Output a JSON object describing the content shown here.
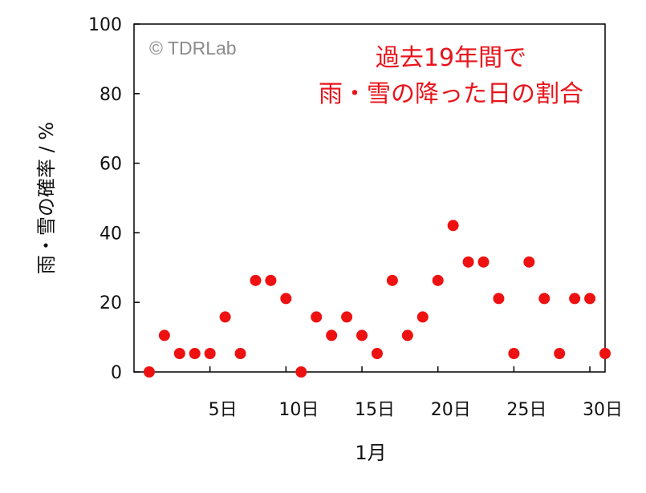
{
  "chart_data": {
    "type": "scatter",
    "title_lines": [
      "過去19年間で",
      "雨・雪の降った日の割合"
    ],
    "watermark": "© TDRLab",
    "xlabel": "1月",
    "ylabel": "雨・雪の確率 / %",
    "x_tick_labels": [
      "5日",
      "10日",
      "15日",
      "20日",
      "25日",
      "30日"
    ],
    "y_tick_labels": [
      "0",
      "20",
      "40",
      "60",
      "80",
      "100"
    ],
    "xlim": [
      0,
      31
    ],
    "ylim": [
      0,
      100
    ],
    "grid": false,
    "marker_color": "#ee1111",
    "series": [
      {
        "x": [
          1,
          2,
          3,
          4,
          5,
          6,
          7,
          8,
          9,
          10,
          11,
          12,
          13,
          14,
          15,
          16,
          17,
          18,
          19,
          20,
          21,
          22,
          23,
          24,
          25,
          26,
          27,
          28,
          29,
          30,
          31
        ],
        "y": [
          0,
          10.5,
          5.3,
          5.3,
          5.3,
          15.8,
          5.3,
          26.3,
          26.3,
          21.1,
          0,
          15.8,
          10.5,
          15.8,
          10.5,
          5.3,
          26.3,
          10.5,
          15.8,
          26.3,
          42.1,
          31.6,
          31.6,
          21.1,
          5.3,
          31.6,
          21.1,
          5.3,
          21.1,
          21.1,
          5.3
        ]
      }
    ]
  }
}
